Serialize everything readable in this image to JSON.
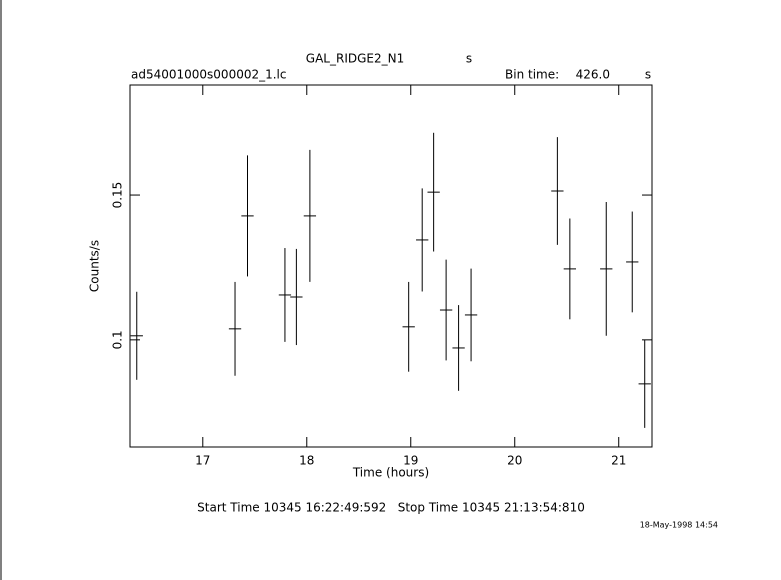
{
  "chart_data": {
    "type": "errorbar",
    "title": "GAL_RIDGE2_N1",
    "title_unit": "s",
    "file_name": "ad54001000s000002_1.lc",
    "bin_time_label": "Bin time:",
    "bin_time": "426.0",
    "bin_time_unit": "s",
    "xlabel": "Time (hours)",
    "ylabel": "Counts/s",
    "footer": "Start Time 10345 16:22:49:592   Stop Time 10345 21:13:54:810",
    "date": "18-May-1998 14:54",
    "xlim": [
      16.3,
      21.32
    ],
    "xticks": [
      17,
      18,
      19,
      20,
      21
    ],
    "ylim": [
      0.063,
      0.188
    ],
    "yticks": [
      0.1,
      0.15
    ],
    "xerr": 0.0592,
    "color": "#000000",
    "x": [
      16.365,
      17.31,
      17.43,
      17.79,
      17.9,
      18.03,
      18.98,
      19.11,
      19.22,
      19.34,
      19.46,
      19.58,
      20.41,
      20.53,
      20.88,
      21.13,
      21.25
    ],
    "values": [
      0.1014,
      0.1038,
      0.1428,
      0.1155,
      0.1148,
      0.1428,
      0.1045,
      0.1345,
      0.151,
      0.1103,
      0.0972,
      0.1086,
      0.1514,
      0.1245,
      0.1245,
      0.1269,
      0.0848
    ],
    "errors": [
      0.0152,
      0.0162,
      0.0209,
      0.0162,
      0.0166,
      0.0228,
      0.0155,
      0.0178,
      0.0205,
      0.0174,
      0.0148,
      0.016,
      0.0186,
      0.0174,
      0.0231,
      0.0174,
      0.0152
    ]
  }
}
